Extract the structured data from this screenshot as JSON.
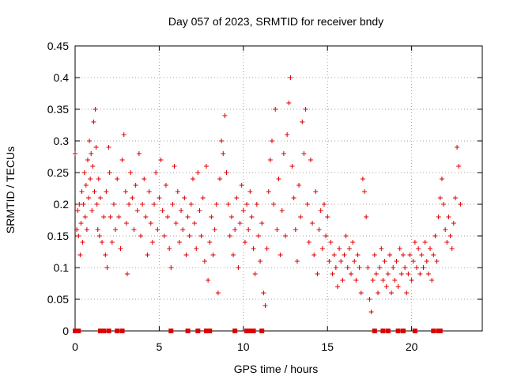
{
  "chart_data": {
    "type": "scatter",
    "title": "Day 057 of 2023, SRMTID for receiver bndy",
    "xlabel": "GPS time / hours",
    "ylabel": "SRMTID / TECUs",
    "xlim": [
      0,
      24.2
    ],
    "ylim": [
      0,
      0.45
    ],
    "x_ticks": [
      0,
      5,
      10,
      15,
      20
    ],
    "x_tick_labels": [
      "0",
      "5",
      "10",
      "15",
      "20"
    ],
    "y_ticks": [
      0,
      0.05,
      0.1,
      0.15,
      0.2,
      0.25,
      0.3,
      0.35,
      0.4,
      0.45
    ],
    "y_tick_labels": [
      "0",
      "0.05",
      "0.1",
      "0.15",
      "0.2",
      "0.25",
      "0.3",
      "0.35",
      "0.4",
      "0.45"
    ],
    "grid": true,
    "marker": "+",
    "series": [
      {
        "name": "bndy",
        "color": "#dd0000",
        "points": [
          [
            0.0,
            0.28
          ],
          [
            0.1,
            0.16
          ],
          [
            0.15,
            0.19
          ],
          [
            0.2,
            0.15
          ],
          [
            0.25,
            0.2
          ],
          [
            0.3,
            0.12
          ],
          [
            0.35,
            0.17
          ],
          [
            0.4,
            0.22
          ],
          [
            0.45,
            0.14
          ],
          [
            0.5,
            0.2
          ],
          [
            0.55,
            0.25
          ],
          [
            0.6,
            0.18
          ],
          [
            0.65,
            0.23
          ],
          [
            0.7,
            0.16
          ],
          [
            0.75,
            0.27
          ],
          [
            0.8,
            0.21
          ],
          [
            0.85,
            0.3
          ],
          [
            0.9,
            0.24
          ],
          [
            0.95,
            0.28
          ],
          [
            1.0,
            0.19
          ],
          [
            1.05,
            0.26
          ],
          [
            1.1,
            0.33
          ],
          [
            1.15,
            0.22
          ],
          [
            1.2,
            0.35
          ],
          [
            1.25,
            0.29
          ],
          [
            1.3,
            0.2
          ],
          [
            1.35,
            0.16
          ],
          [
            1.4,
            0.24
          ],
          [
            1.45,
            0.15
          ],
          [
            1.5,
            0.21
          ],
          [
            1.6,
            0.14
          ],
          [
            1.7,
            0.18
          ],
          [
            1.8,
            0.12
          ],
          [
            1.85,
            0.22
          ],
          [
            1.9,
            0.1
          ],
          [
            2.0,
            0.29
          ],
          [
            2.05,
            0.25
          ],
          [
            2.1,
            0.18
          ],
          [
            2.2,
            0.14
          ],
          [
            2.3,
            0.2
          ],
          [
            2.4,
            0.16
          ],
          [
            2.5,
            0.24
          ],
          [
            2.6,
            0.18
          ],
          [
            2.7,
            0.13
          ],
          [
            2.8,
            0.27
          ],
          [
            2.9,
            0.31
          ],
          [
            3.0,
            0.22
          ],
          [
            3.05,
            0.17
          ],
          [
            3.1,
            0.09
          ],
          [
            3.2,
            0.2
          ],
          [
            3.3,
            0.25
          ],
          [
            3.4,
            0.21
          ],
          [
            3.5,
            0.16
          ],
          [
            3.6,
            0.23
          ],
          [
            3.7,
            0.19
          ],
          [
            3.8,
            0.28
          ],
          [
            3.9,
            0.15
          ],
          [
            4.0,
            0.2
          ],
          [
            4.1,
            0.24
          ],
          [
            4.2,
            0.18
          ],
          [
            4.3,
            0.12
          ],
          [
            4.4,
            0.22
          ],
          [
            4.5,
            0.17
          ],
          [
            4.6,
            0.14
          ],
          [
            4.7,
            0.2
          ],
          [
            4.8,
            0.25
          ],
          [
            4.9,
            0.16
          ],
          [
            5.0,
            0.21
          ],
          [
            5.1,
            0.27
          ],
          [
            5.2,
            0.19
          ],
          [
            5.3,
            0.15
          ],
          [
            5.4,
            0.23
          ],
          [
            5.5,
            0.18
          ],
          [
            5.6,
            0.13
          ],
          [
            5.7,
            0.1
          ],
          [
            5.8,
            0.2
          ],
          [
            5.9,
            0.26
          ],
          [
            6.0,
            0.17
          ],
          [
            6.1,
            0.22
          ],
          [
            6.2,
            0.14
          ],
          [
            6.3,
            0.19
          ],
          [
            6.4,
            0.16
          ],
          [
            6.5,
            0.21
          ],
          [
            6.6,
            0.12
          ],
          [
            6.7,
            0.18
          ],
          [
            6.8,
            0.15
          ],
          [
            6.9,
            0.2
          ],
          [
            7.0,
            0.24
          ],
          [
            7.1,
            0.17
          ],
          [
            7.2,
            0.13
          ],
          [
            7.3,
            0.25
          ],
          [
            7.4,
            0.19
          ],
          [
            7.5,
            0.15
          ],
          [
            7.6,
            0.21
          ],
          [
            7.7,
            0.11
          ],
          [
            7.8,
            0.26
          ],
          [
            7.9,
            0.08
          ],
          [
            8.0,
            0.14
          ],
          [
            8.1,
            0.18
          ],
          [
            8.2,
            0.12
          ],
          [
            8.3,
            0.16
          ],
          [
            8.4,
            0.2
          ],
          [
            8.5,
            0.06
          ],
          [
            8.6,
            0.24
          ],
          [
            8.7,
            0.3
          ],
          [
            8.8,
            0.28
          ],
          [
            8.9,
            0.34
          ],
          [
            9.0,
            0.25
          ],
          [
            9.1,
            0.2
          ],
          [
            9.2,
            0.15
          ],
          [
            9.3,
            0.18
          ],
          [
            9.4,
            0.12
          ],
          [
            9.5,
            0.16
          ],
          [
            9.6,
            0.21
          ],
          [
            9.7,
            0.1
          ],
          [
            9.8,
            0.17
          ],
          [
            9.9,
            0.23
          ],
          [
            10.0,
            0.19
          ],
          [
            10.1,
            0.14
          ],
          [
            10.2,
            0.2
          ],
          [
            10.3,
            0.16
          ],
          [
            10.4,
            0.22
          ],
          [
            10.5,
            0.18
          ],
          [
            10.6,
            0.13
          ],
          [
            10.7,
            0.09
          ],
          [
            10.8,
            0.2
          ],
          [
            10.9,
            0.15
          ],
          [
            11.0,
            0.11
          ],
          [
            11.1,
            0.17
          ],
          [
            11.2,
            0.06
          ],
          [
            11.3,
            0.04
          ],
          [
            11.4,
            0.13
          ],
          [
            11.5,
            0.22
          ],
          [
            11.6,
            0.27
          ],
          [
            11.7,
            0.3
          ],
          [
            11.8,
            0.2
          ],
          [
            11.9,
            0.35
          ],
          [
            12.0,
            0.16
          ],
          [
            12.1,
            0.24
          ],
          [
            12.2,
            0.12
          ],
          [
            12.3,
            0.19
          ],
          [
            12.4,
            0.28
          ],
          [
            12.5,
            0.15
          ],
          [
            12.6,
            0.31
          ],
          [
            12.7,
            0.36
          ],
          [
            12.8,
            0.4
          ],
          [
            12.9,
            0.26
          ],
          [
            13.0,
            0.21
          ],
          [
            13.1,
            0.16
          ],
          [
            13.2,
            0.11
          ],
          [
            13.3,
            0.23
          ],
          [
            13.4,
            0.18
          ],
          [
            13.5,
            0.33
          ],
          [
            13.6,
            0.28
          ],
          [
            13.7,
            0.35
          ],
          [
            13.8,
            0.2
          ],
          [
            13.9,
            0.14
          ],
          [
            14.0,
            0.27
          ],
          [
            14.1,
            0.17
          ],
          [
            14.2,
            0.12
          ],
          [
            14.3,
            0.22
          ],
          [
            14.4,
            0.09
          ],
          [
            14.5,
            0.16
          ],
          [
            14.6,
            0.19
          ],
          [
            14.7,
            0.13
          ],
          [
            14.8,
            0.2
          ],
          [
            14.9,
            0.15
          ],
          [
            15.0,
            0.18
          ],
          [
            15.1,
            0.11
          ],
          [
            15.2,
            0.14
          ],
          [
            15.3,
            0.09
          ],
          [
            15.4,
            0.12
          ],
          [
            15.5,
            0.1
          ],
          [
            15.6,
            0.07
          ],
          [
            15.7,
            0.13
          ],
          [
            15.8,
            0.11
          ],
          [
            15.9,
            0.08
          ],
          [
            16.0,
            0.12
          ],
          [
            16.1,
            0.15
          ],
          [
            16.2,
            0.1
          ],
          [
            16.3,
            0.13
          ],
          [
            16.4,
            0.09
          ],
          [
            16.5,
            0.14
          ],
          [
            16.6,
            0.11
          ],
          [
            16.7,
            0.08
          ],
          [
            16.8,
            0.12
          ],
          [
            16.9,
            0.1
          ],
          [
            17.0,
            0.06
          ],
          [
            17.1,
            0.24
          ],
          [
            17.2,
            0.22
          ],
          [
            17.3,
            0.18
          ],
          [
            17.4,
            0.1
          ],
          [
            17.5,
            0.05
          ],
          [
            17.6,
            0.03
          ],
          [
            17.7,
            0.08
          ],
          [
            17.8,
            0.12
          ],
          [
            17.9,
            0.09
          ],
          [
            18.0,
            0.06
          ],
          [
            18.1,
            0.1
          ],
          [
            18.2,
            0.13
          ],
          [
            18.3,
            0.08
          ],
          [
            18.4,
            0.11
          ],
          [
            18.5,
            0.07
          ],
          [
            18.6,
            0.09
          ],
          [
            18.7,
            0.12
          ],
          [
            18.8,
            0.06
          ],
          [
            18.9,
            0.1
          ],
          [
            19.0,
            0.08
          ],
          [
            19.1,
            0.11
          ],
          [
            19.2,
            0.07
          ],
          [
            19.3,
            0.13
          ],
          [
            19.4,
            0.09
          ],
          [
            19.5,
            0.12
          ],
          [
            19.6,
            0.1
          ],
          [
            19.7,
            0.06
          ],
          [
            19.8,
            0.09
          ],
          [
            19.9,
            0.12
          ],
          [
            20.0,
            0.08
          ],
          [
            20.1,
            0.11
          ],
          [
            20.2,
            0.14
          ],
          [
            20.3,
            0.1
          ],
          [
            20.4,
            0.13
          ],
          [
            20.5,
            0.09
          ],
          [
            20.6,
            0.12
          ],
          [
            20.7,
            0.1
          ],
          [
            20.8,
            0.14
          ],
          [
            20.9,
            0.11
          ],
          [
            21.0,
            0.09
          ],
          [
            21.1,
            0.13
          ],
          [
            21.2,
            0.08
          ],
          [
            21.3,
            0.12
          ],
          [
            21.4,
            0.15
          ],
          [
            21.5,
            0.11
          ],
          [
            21.6,
            0.18
          ],
          [
            21.7,
            0.21
          ],
          [
            21.8,
            0.24
          ],
          [
            21.9,
            0.2
          ],
          [
            22.0,
            0.16
          ],
          [
            22.1,
            0.14
          ],
          [
            22.2,
            0.18
          ],
          [
            22.3,
            0.15
          ],
          [
            22.4,
            0.13
          ],
          [
            22.5,
            0.17
          ],
          [
            22.6,
            0.21
          ],
          [
            22.7,
            0.29
          ],
          [
            22.8,
            0.26
          ],
          [
            22.9,
            0.2
          ]
        ]
      }
    ],
    "zero_points": [
      0.0,
      0.1,
      0.2,
      1.5,
      1.7,
      2.0,
      2.5,
      2.8,
      5.7,
      6.7,
      7.3,
      7.8,
      8.0,
      9.5,
      10.2,
      10.4,
      10.6,
      11.1,
      17.8,
      18.3,
      18.6,
      19.2,
      19.5,
      20.2,
      21.3,
      21.6,
      21.7
    ]
  }
}
